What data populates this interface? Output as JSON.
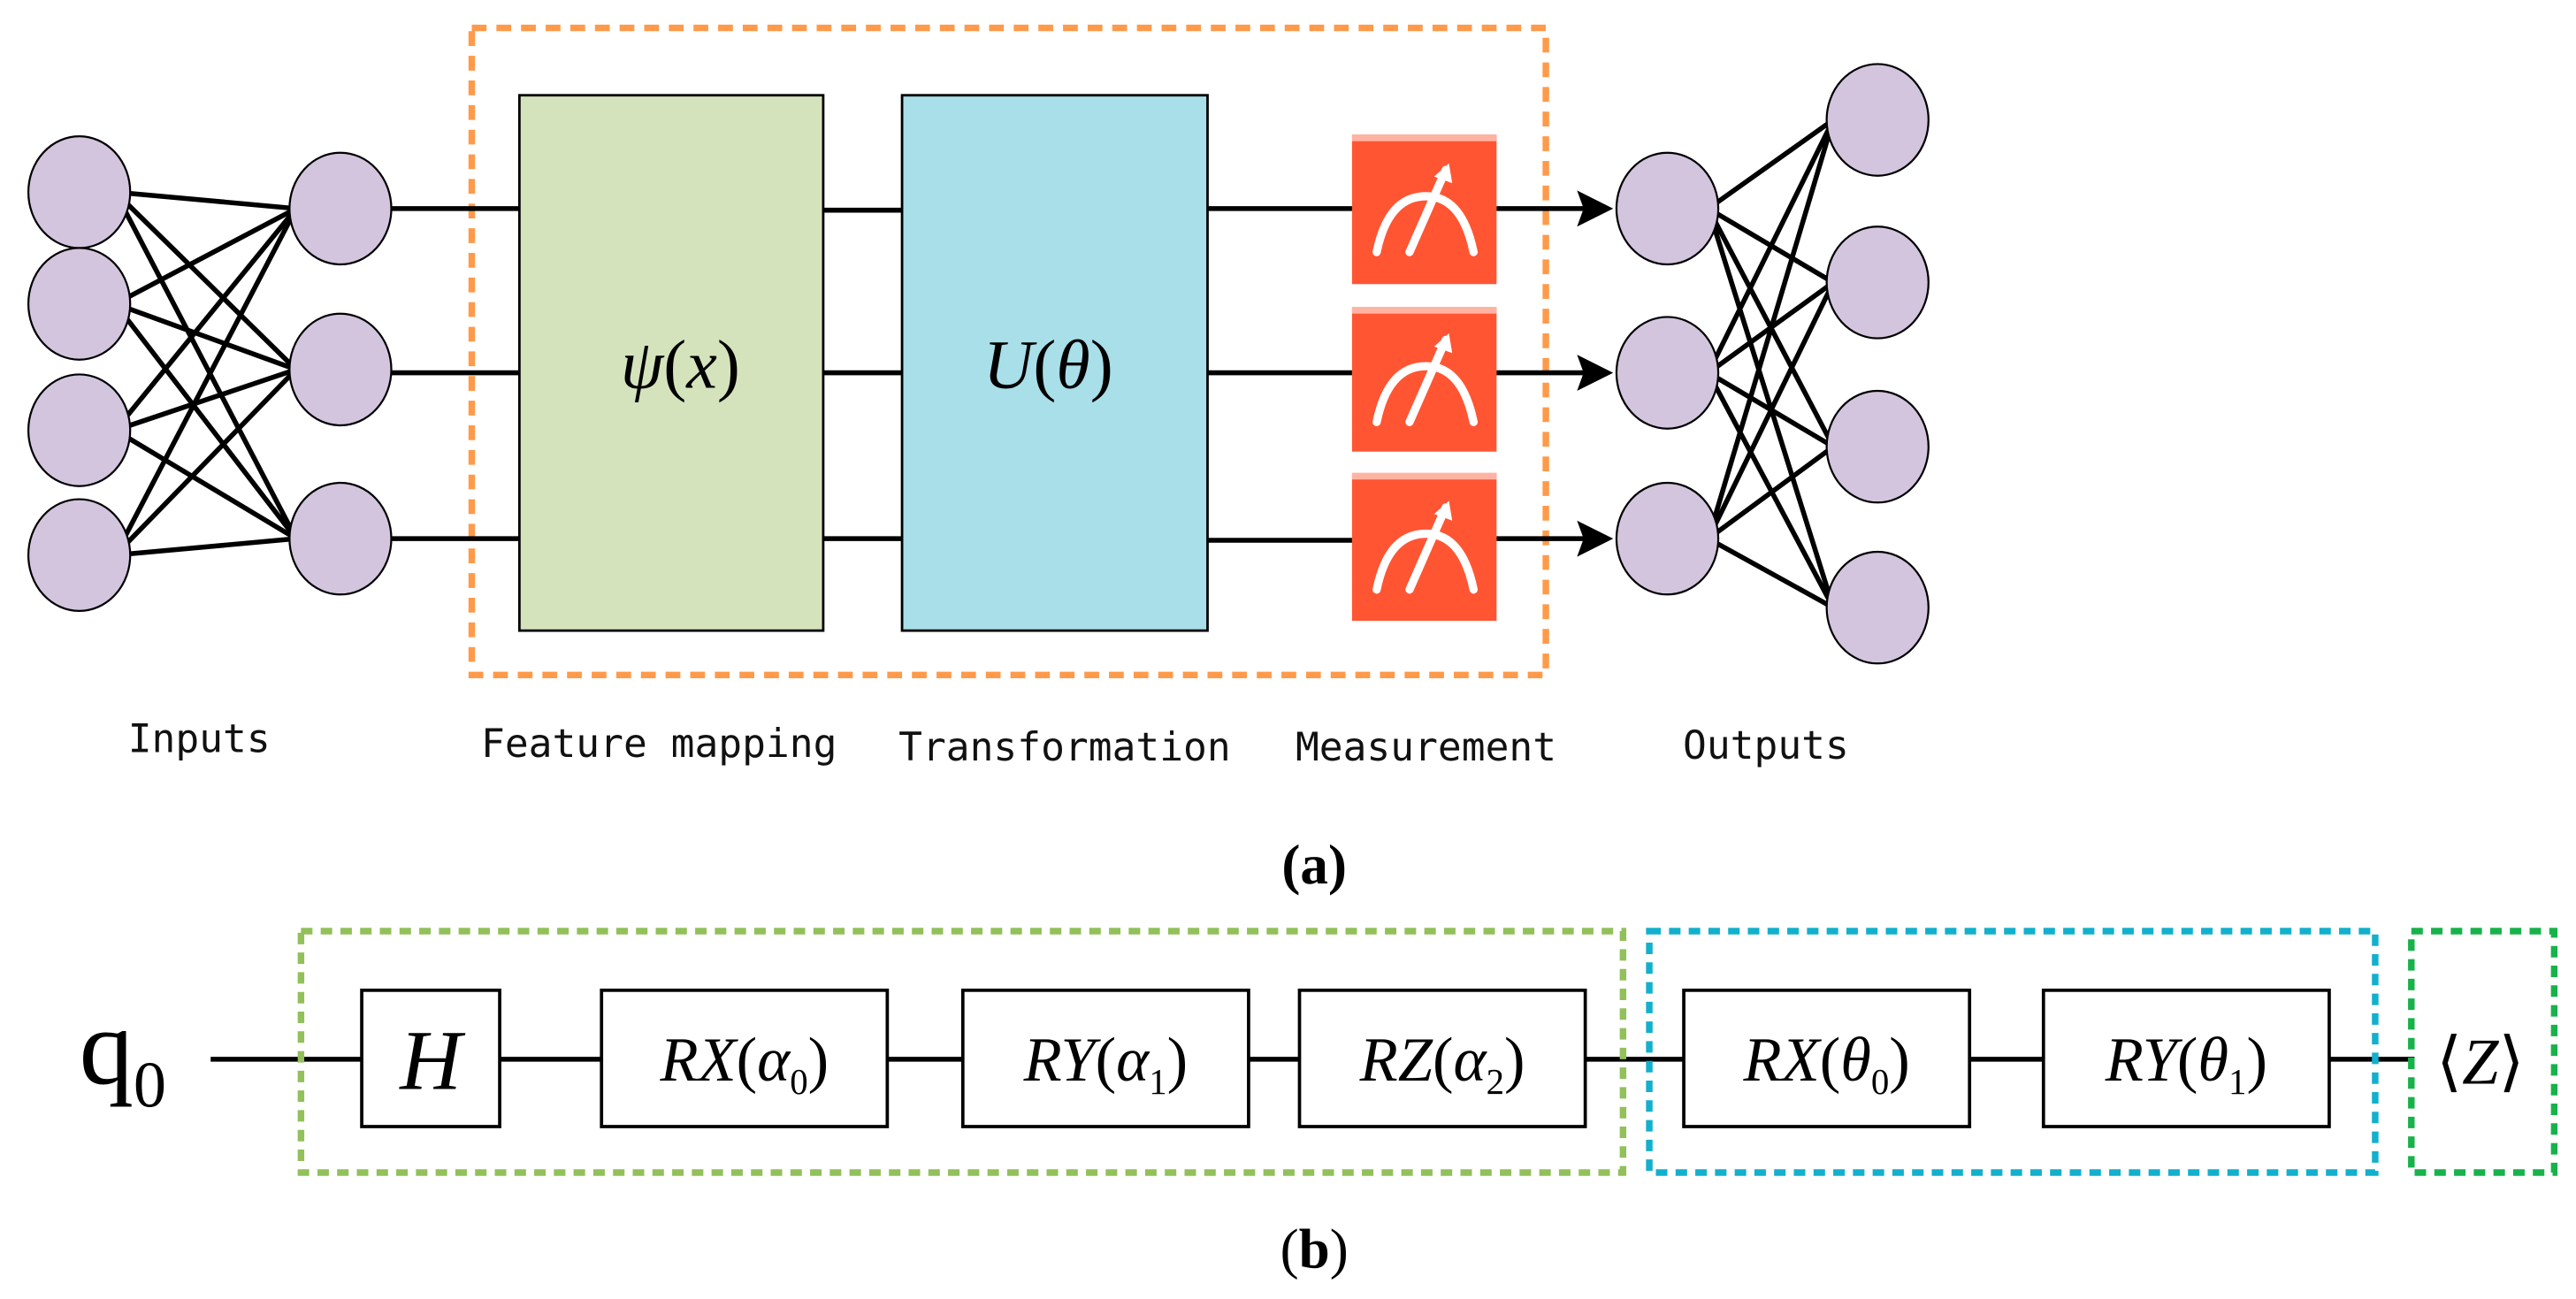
{
  "panel_a": {
    "labels": {
      "inputs": "Inputs",
      "feature_mapping": "Feature mapping",
      "transformation": "Transformation",
      "measurement": "Measurement",
      "outputs": "Outputs"
    },
    "feature_box": {
      "func": "ψ",
      "arg": "x",
      "color": "#d5e3bd"
    },
    "transform_box": {
      "func": "U",
      "arg": "θ",
      "color": "#a8dfe9"
    },
    "measurement_color": "#ff5533",
    "quantum_layer_border_color": "#ff9a4a",
    "input_nodes": 4,
    "hidden_nodes": 3,
    "output_nodes": 4,
    "caption": "(a)",
    "caption_letter": "a"
  },
  "panel_b": {
    "qubit": {
      "name": "q",
      "index": "0"
    },
    "gates": [
      {
        "name": "H",
        "param": "",
        "sub": ""
      },
      {
        "name": "RX",
        "param": "α",
        "sub": "0"
      },
      {
        "name": "RY",
        "param": "α",
        "sub": "1"
      },
      {
        "name": "RZ",
        "param": "α",
        "sub": "2"
      },
      {
        "name": "RX",
        "param": "θ",
        "sub": "0"
      },
      {
        "name": "RY",
        "param": "θ",
        "sub": "1"
      }
    ],
    "measurement": "Z",
    "encoding_border_color": "#92c05a",
    "variational_border_color": "#12b0cc",
    "measure_border_color": "#17b24a",
    "caption_letter": "b"
  }
}
